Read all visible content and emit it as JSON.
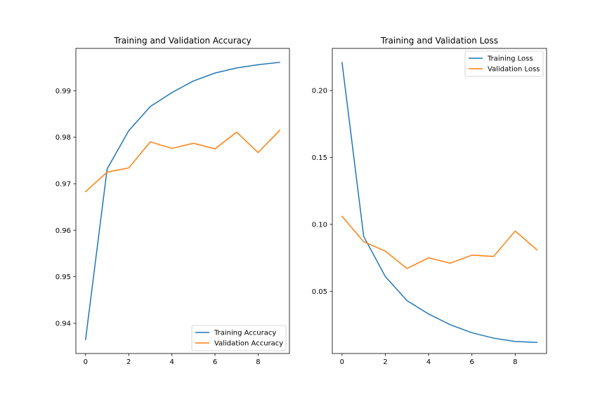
{
  "chart_data": [
    {
      "type": "line",
      "title": "Training and Validation Accuracy",
      "xlabel": "",
      "ylabel": "",
      "xlim": [
        -0.45,
        9.45
      ],
      "ylim": [
        0.9335,
        0.9991
      ],
      "xticks": [
        0,
        2,
        4,
        6,
        8
      ],
      "xtick_labels": [
        "0",
        "2",
        "4",
        "6",
        "8"
      ],
      "yticks": [
        0.94,
        0.95,
        0.96,
        0.97,
        0.98,
        0.99
      ],
      "ytick_labels": [
        "0.94",
        "0.95",
        "0.96",
        "0.97",
        "0.98",
        "0.99"
      ],
      "x": [
        0,
        1,
        2,
        3,
        4,
        5,
        6,
        7,
        8,
        9
      ],
      "series": [
        {
          "name": "Training Accuracy",
          "color": "#1f77b4",
          "values": [
            0.9365,
            0.9732,
            0.9814,
            0.9866,
            0.9896,
            0.9921,
            0.9938,
            0.9949,
            0.9956,
            0.9961
          ]
        },
        {
          "name": "Validation Accuracy",
          "color": "#ff7f0e",
          "values": [
            0.9683,
            0.9725,
            0.9734,
            0.979,
            0.9776,
            0.9787,
            0.9775,
            0.9811,
            0.9767,
            0.9815
          ]
        }
      ],
      "legend": "lower-right",
      "grid": false
    },
    {
      "type": "line",
      "title": "Training and Validation Loss",
      "xlabel": "",
      "ylabel": "",
      "xlim": [
        -0.45,
        9.45
      ],
      "ylim": [
        0.0035,
        0.2315
      ],
      "xticks": [
        0,
        2,
        4,
        6,
        8
      ],
      "xtick_labels": [
        "0",
        "2",
        "4",
        "6",
        "8"
      ],
      "yticks": [
        0.05,
        0.1,
        0.15,
        0.2
      ],
      "ytick_labels": [
        "0.05",
        "0.10",
        "0.15",
        "0.20"
      ],
      "x": [
        0,
        1,
        2,
        3,
        4,
        5,
        6,
        7,
        8,
        9
      ],
      "series": [
        {
          "name": "Training Loss",
          "color": "#1f77b4",
          "values": [
            0.221,
            0.091,
            0.061,
            0.043,
            0.033,
            0.025,
            0.019,
            0.015,
            0.0125,
            0.0118
          ]
        },
        {
          "name": "Validation Loss",
          "color": "#ff7f0e",
          "values": [
            0.106,
            0.087,
            0.08,
            0.067,
            0.075,
            0.071,
            0.077,
            0.076,
            0.095,
            0.081
          ]
        }
      ],
      "legend": "upper-right",
      "grid": false
    }
  ]
}
